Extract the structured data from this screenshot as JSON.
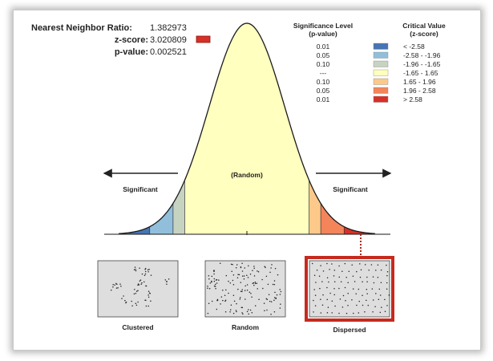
{
  "stats": {
    "nnr_label": "Nearest Neighbor Ratio:",
    "nnr_value": "1.382973",
    "z_label": "z-score:",
    "z_value": "3.020809",
    "p_label": "p-value:",
    "p_value": "0.002521",
    "z_marker_color": "#d73027"
  },
  "legend": {
    "sig_header_1": "Significance Level",
    "sig_header_2": "(p-value)",
    "crit_header_1": "Critical Value",
    "crit_header_2": "(z-score)",
    "rows": [
      {
        "p": "0.01",
        "z": "< -2.58",
        "color": "#4575b4"
      },
      {
        "p": "0.05",
        "z": "-2.58 - -1.96",
        "color": "#91bfdb"
      },
      {
        "p": "0.10",
        "z": "-1.96 - -1.65",
        "color": "#c7d3c1"
      },
      {
        "p": "---",
        "z": "-1.65 - 1.65",
        "color": "#ffffbf"
      },
      {
        "p": "0.10",
        "z": "1.65 - 1.96",
        "color": "#fdc98a"
      },
      {
        "p": "0.05",
        "z": "1.96 - 2.58",
        "color": "#f4845a"
      },
      {
        "p": "0.01",
        "z": "> 2.58",
        "color": "#d73027"
      }
    ]
  },
  "curve": {
    "center_label": "(Random)",
    "left_label": "Significant",
    "right_label": "Significant",
    "z_score": 3.020809
  },
  "patterns": [
    {
      "label": "Clustered",
      "highlighted": false
    },
    {
      "label": "Random",
      "highlighted": false
    },
    {
      "label": "Dispersed",
      "highlighted": true
    }
  ]
}
